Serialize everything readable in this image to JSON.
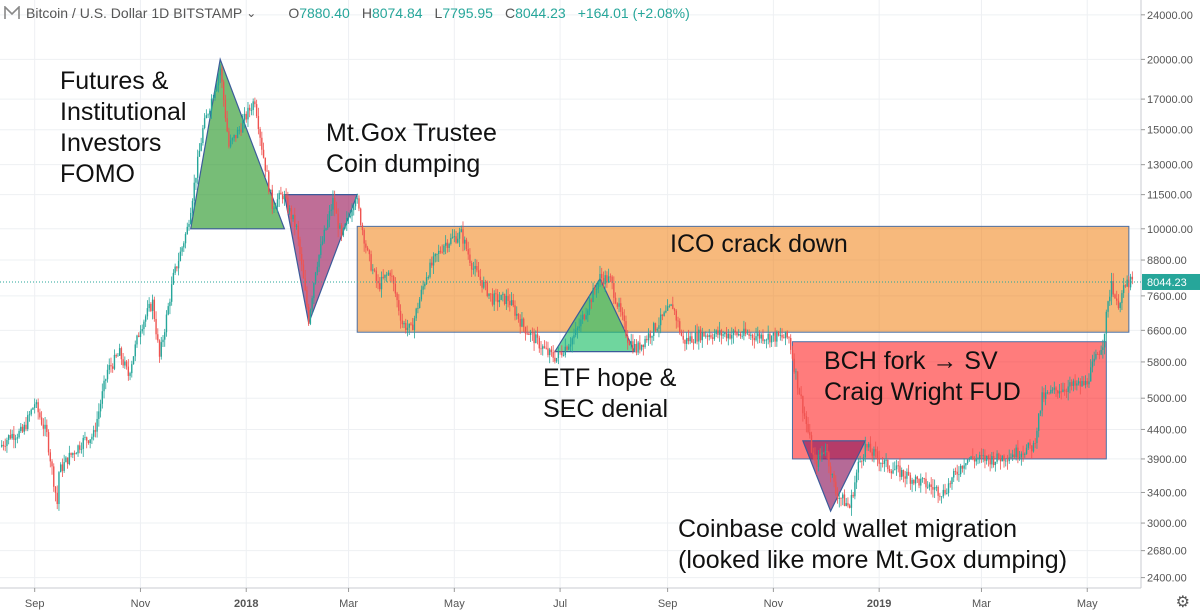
{
  "header": {
    "symbol": "Bitcoin / U.S. Dollar",
    "interval": "1D",
    "exchange": "BITSTAMP",
    "open_key": "O",
    "open": "7880.40",
    "high_key": "H",
    "high": "8074.84",
    "low_key": "L",
    "low": "7795.95",
    "close_key": "C",
    "close": "8044.23",
    "change": "+164.01 (+2.08%)"
  },
  "chart_data": {
    "type": "candlestick",
    "scale": "log",
    "y_ticks": [
      2400,
      2680,
      3000,
      3400,
      3900,
      4400,
      5000,
      5800,
      6600,
      7600,
      8800,
      10000,
      11500,
      13000,
      15000,
      17000,
      20000,
      24000
    ],
    "y_tick_labels": [
      "2400.00",
      "2680.00",
      "3000.00",
      "3400.00",
      "3900.00",
      "4400.00",
      "5000.00",
      "5800.00",
      "6600.00",
      "7600.00",
      "8800.00",
      "10000.00",
      "11500.00",
      "13000.00",
      "15000.00",
      "17000.00",
      "20000.00",
      "24000.00"
    ],
    "ylim": [
      2300,
      25500
    ],
    "x_ticks": [
      "Sep",
      "Nov",
      "2018",
      "Mar",
      "May",
      "Jul",
      "Sep",
      "Nov",
      "2019",
      "Mar",
      "May"
    ],
    "x_tick_dates": [
      "2017-09-01",
      "2017-11-01",
      "2018-01-01",
      "2018-03-01",
      "2018-05-01",
      "2018-07-01",
      "2018-09-01",
      "2018-11-01",
      "2019-01-01",
      "2019-03-01",
      "2019-05-01"
    ],
    "xlim": [
      "2017-08-12",
      "2019-06-01"
    ],
    "last_price": 8044.23,
    "last_price_label": "8044.23",
    "grid": true,
    "price_path": [
      [
        "2017-08-12",
        4100
      ],
      [
        "2017-08-18",
        4300
      ],
      [
        "2017-08-25",
        4350
      ],
      [
        "2017-09-01",
        4900
      ],
      [
        "2017-09-08",
        4300
      ],
      [
        "2017-09-14",
        3250
      ],
      [
        "2017-09-15",
        3700
      ],
      [
        "2017-09-20",
        3900
      ],
      [
        "2017-09-29",
        4200
      ],
      [
        "2017-10-05",
        4300
      ],
      [
        "2017-10-13",
        5600
      ],
      [
        "2017-10-20",
        6000
      ],
      [
        "2017-10-25",
        5500
      ],
      [
        "2017-11-01",
        6700
      ],
      [
        "2017-11-08",
        7400
      ],
      [
        "2017-11-12",
        5900
      ],
      [
        "2017-11-20",
        8200
      ],
      [
        "2017-11-28",
        10000
      ],
      [
        "2017-12-07",
        15000
      ],
      [
        "2017-12-12",
        17000
      ],
      [
        "2017-12-17",
        19300
      ],
      [
        "2017-12-22",
        14000
      ],
      [
        "2017-12-28",
        15000
      ],
      [
        "2018-01-06",
        17000
      ],
      [
        "2018-01-10",
        14000
      ],
      [
        "2018-01-16",
        11000
      ],
      [
        "2018-01-22",
        11500
      ],
      [
        "2018-01-30",
        10000
      ],
      [
        "2018-02-06",
        6900
      ],
      [
        "2018-02-10",
        8500
      ],
      [
        "2018-02-20",
        11200
      ],
      [
        "2018-02-25",
        9600
      ],
      [
        "2018-03-05",
        11500
      ],
      [
        "2018-03-12",
        9000
      ],
      [
        "2018-03-18",
        7900
      ],
      [
        "2018-03-25",
        8400
      ],
      [
        "2018-04-01",
        6800
      ],
      [
        "2018-04-06",
        6600
      ],
      [
        "2018-04-15",
        8300
      ],
      [
        "2018-04-25",
        9400
      ],
      [
        "2018-05-05",
        9800
      ],
      [
        "2018-05-12",
        8500
      ],
      [
        "2018-05-23",
        7500
      ],
      [
        "2018-06-01",
        7500
      ],
      [
        "2018-06-10",
        6700
      ],
      [
        "2018-06-24",
        6000
      ],
      [
        "2018-06-29",
        5900
      ],
      [
        "2018-07-10",
        6500
      ],
      [
        "2018-07-24",
        8200
      ],
      [
        "2018-07-30",
        8100
      ],
      [
        "2018-08-09",
        6400
      ],
      [
        "2018-08-14",
        6100
      ],
      [
        "2018-08-25",
        6700
      ],
      [
        "2018-09-04",
        7300
      ],
      [
        "2018-09-10",
        6300
      ],
      [
        "2018-09-20",
        6500
      ],
      [
        "2018-10-10",
        6500
      ],
      [
        "2018-11-10",
        6400
      ],
      [
        "2018-11-14",
        5500
      ],
      [
        "2018-11-20",
        4500
      ],
      [
        "2018-11-25",
        3800
      ],
      [
        "2018-12-01",
        4100
      ],
      [
        "2018-12-07",
        3400
      ],
      [
        "2018-12-15",
        3200
      ],
      [
        "2018-12-20",
        3800
      ],
      [
        "2018-12-24",
        4100
      ],
      [
        "2019-01-05",
        3800
      ],
      [
        "2019-01-20",
        3600
      ],
      [
        "2019-02-07",
        3400
      ],
      [
        "2019-02-20",
        3900
      ],
      [
        "2019-03-10",
        3900
      ],
      [
        "2019-03-31",
        4100
      ],
      [
        "2019-04-05",
        5000
      ],
      [
        "2019-04-15",
        5200
      ],
      [
        "2019-04-30",
        5300
      ],
      [
        "2019-05-10",
        6300
      ],
      [
        "2019-05-15",
        8100
      ],
      [
        "2019-05-18",
        7300
      ],
      [
        "2019-05-24",
        8000
      ],
      [
        "2019-05-27",
        8044
      ]
    ]
  },
  "annotations": [
    {
      "key": "futures",
      "text": "Futures &\nInstitutional\nInvestors\nFOMO",
      "color": "#2e9a2e",
      "triangle": [
        [
          "2017-11-30",
          10000
        ],
        [
          "2017-12-17",
          20000
        ],
        [
          "2018-01-23",
          10000
        ]
      ]
    },
    {
      "key": "mtgox",
      "text": "Mt.Gox Trustee\nCoin dumping",
      "color": "#9c2060",
      "triangle": [
        [
          "2018-01-23",
          11500
        ],
        [
          "2018-03-06",
          11500
        ],
        [
          "2018-02-06",
          6800
        ]
      ]
    },
    {
      "key": "ico",
      "text": "ICO crack down",
      "color": "#f07f10",
      "rect": [
        [
          "2018-03-06",
          10100
        ],
        [
          "2019-05-25",
          6550
        ]
      ]
    },
    {
      "key": "etf",
      "text": "ETF hope &\nSEC denial",
      "color": "#22c06a",
      "triangle": [
        [
          "2018-06-28",
          6050
        ],
        [
          "2018-07-24",
          8150
        ],
        [
          "2018-08-13",
          6050
        ]
      ]
    },
    {
      "key": "bch",
      "text": "BCH fork → SV\nCraig Wright FUD",
      "color": "#ff1010",
      "rect": [
        [
          "2018-11-12",
          6300
        ],
        [
          "2019-05-12",
          3900
        ]
      ]
    },
    {
      "key": "coinbase",
      "text": "Coinbase cold wallet migration\n(looked like more Mt.Gox dumping)",
      "color": "#8e1a60",
      "triangle": [
        [
          "2018-11-18",
          4200
        ],
        [
          "2018-12-24",
          4200
        ],
        [
          "2018-12-04",
          3150
        ]
      ]
    }
  ]
}
